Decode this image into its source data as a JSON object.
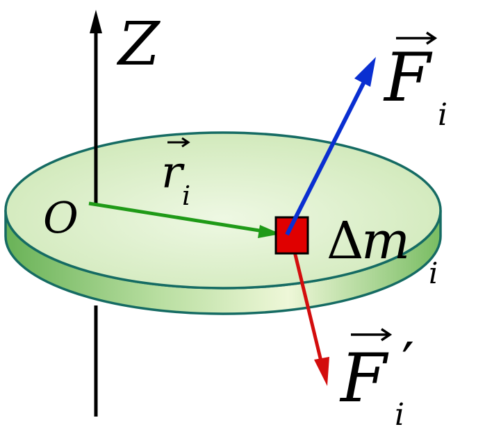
{
  "axis": {
    "label": "Z"
  },
  "origin": {
    "label": "O"
  },
  "radius_vector": {
    "symbol": "r",
    "subscript": "i"
  },
  "mass_element": {
    "label_delta": "Δ",
    "label_m": "m",
    "subscript": "i"
  },
  "force_external": {
    "symbol": "F",
    "subscript": "i",
    "color": "#0a2fd1"
  },
  "force_internal": {
    "symbol": "F",
    "subscript": "i",
    "prime": "′",
    "color": "#d30d0d"
  },
  "colors": {
    "disk_top": "#dcefc6",
    "disk_rim": "#8cc66e",
    "disk_edge": "#156b63",
    "radius_arrow": "#1f9a17",
    "mass_fill": "#e00000"
  }
}
